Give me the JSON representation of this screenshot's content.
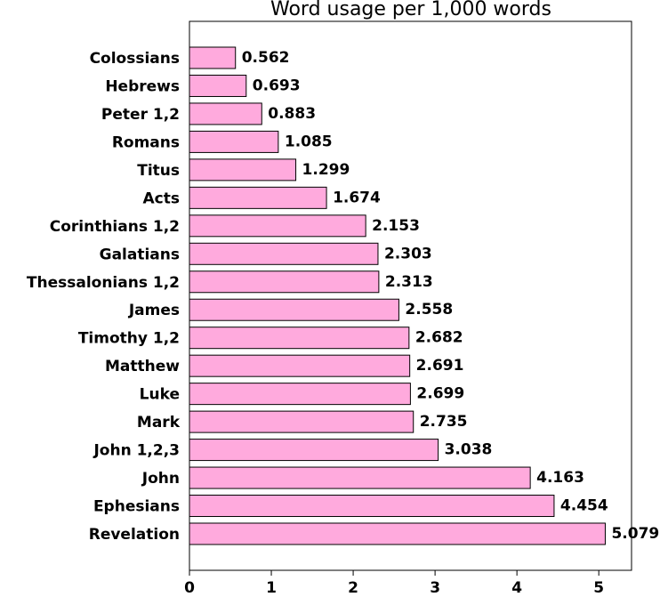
{
  "chart_data": {
    "type": "barh",
    "title": "Word usage per 1,000 words",
    "categories": [
      "Colossians",
      "Hebrews",
      "Peter 1,2",
      "Romans",
      "Titus",
      "Acts",
      "Corinthians 1,2",
      "Galatians",
      "Thessalonians 1,2",
      "James",
      "Timothy 1,2",
      "Matthew",
      "Luke",
      "Mark",
      "John 1,2,3",
      "John",
      "Ephesians",
      "Revelation"
    ],
    "values": [
      0.562,
      0.693,
      0.883,
      1.085,
      1.299,
      1.674,
      2.153,
      2.303,
      2.313,
      2.558,
      2.682,
      2.691,
      2.699,
      2.735,
      3.038,
      4.163,
      4.454,
      5.079
    ],
    "color": "#ffaadd",
    "xlim": [
      0,
      5.4
    ],
    "xticks": [
      0,
      1,
      2,
      3,
      4,
      5
    ]
  }
}
